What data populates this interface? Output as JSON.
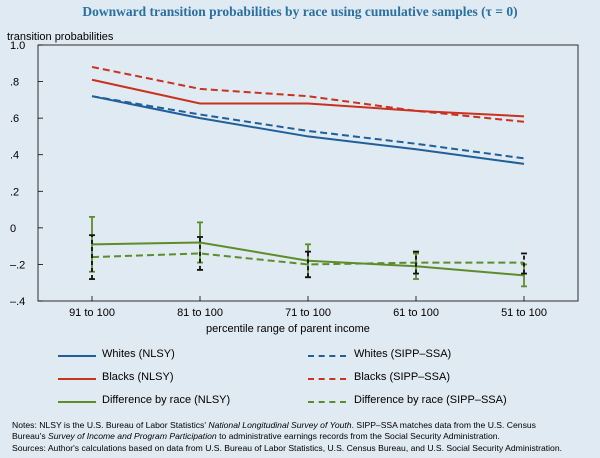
{
  "chart_data": {
    "type": "line",
    "title": "Downward transition probabilities by race using cumulative samples (τ = 0)",
    "ylabel": "transition probabilities",
    "xlabel": "percentile range of parent income",
    "categories": [
      "91 to 100",
      "81 to 100",
      "71 to 100",
      "61 to 100",
      "51 to 100"
    ],
    "ylim": [
      -0.4,
      1.0
    ],
    "yticks": [
      {
        "value": 1.0,
        "label": "1.0"
      },
      {
        "value": 0.8,
        "label": ".8"
      },
      {
        "value": 0.6,
        "label": ".6"
      },
      {
        "value": 0.4,
        "label": ".4"
      },
      {
        "value": 0.2,
        "label": ".2"
      },
      {
        "value": 0.0,
        "label": "0"
      },
      {
        "value": -0.2,
        "label": "–.2"
      },
      {
        "value": -0.4,
        "label": "–.4"
      }
    ],
    "series": [
      {
        "name": "Whites (NLSY)",
        "color": "#1f5f9a",
        "style": "solid",
        "values": [
          0.72,
          0.6,
          0.5,
          0.43,
          0.35
        ]
      },
      {
        "name": "Whites (SIPP–SSA)",
        "color": "#1f5f9a",
        "style": "dashed",
        "values": [
          0.72,
          0.62,
          0.53,
          0.46,
          0.38
        ]
      },
      {
        "name": "Blacks (NLSY)",
        "color": "#c8321e",
        "style": "solid",
        "values": [
          0.81,
          0.68,
          0.68,
          0.64,
          0.61
        ]
      },
      {
        "name": "Blacks (SIPP–SSA)",
        "color": "#c8321e",
        "style": "dashed",
        "values": [
          0.88,
          0.76,
          0.72,
          0.64,
          0.58
        ]
      },
      {
        "name": "Difference by race (NLSY)",
        "color": "#5e8c2a",
        "style": "solid",
        "values": [
          -0.09,
          -0.08,
          -0.18,
          -0.21,
          -0.26
        ],
        "error": [
          [
            -0.24,
            0.06
          ],
          [
            -0.19,
            0.03
          ],
          [
            -0.27,
            -0.09
          ],
          [
            -0.28,
            -0.14
          ],
          [
            -0.32,
            -0.2
          ]
        ]
      },
      {
        "name": "Difference by race (SIPP–SSA)",
        "color": "#5e8c2a",
        "style": "dashed",
        "values": [
          -0.16,
          -0.14,
          -0.2,
          -0.19,
          -0.19
        ],
        "error": [
          [
            -0.28,
            -0.04
          ],
          [
            -0.23,
            -0.05
          ],
          [
            -0.27,
            -0.13
          ],
          [
            -0.25,
            -0.13
          ],
          [
            -0.25,
            -0.14
          ]
        ]
      }
    ]
  },
  "notes": {
    "line1_prefix": "Notes: NLSY is the U.S. Bureau of Labor Statistics'",
    "line1_italic": "National Longitudinal Survey of Youth",
    "line1_suffix": ". SIPP–SSA matches data from the U.S. Census",
    "line2_prefix": "Bureau's",
    "line2_italic": "Survey of Income and Program Participation",
    "line2_suffix": "to administrative earnings records from the Social Security Administration.",
    "line3": "Sources: Author's calculations based on data from U.S. Bureau of Labor Statistics, U.S. Census Bureau, and U.S. Social Security Administration."
  }
}
